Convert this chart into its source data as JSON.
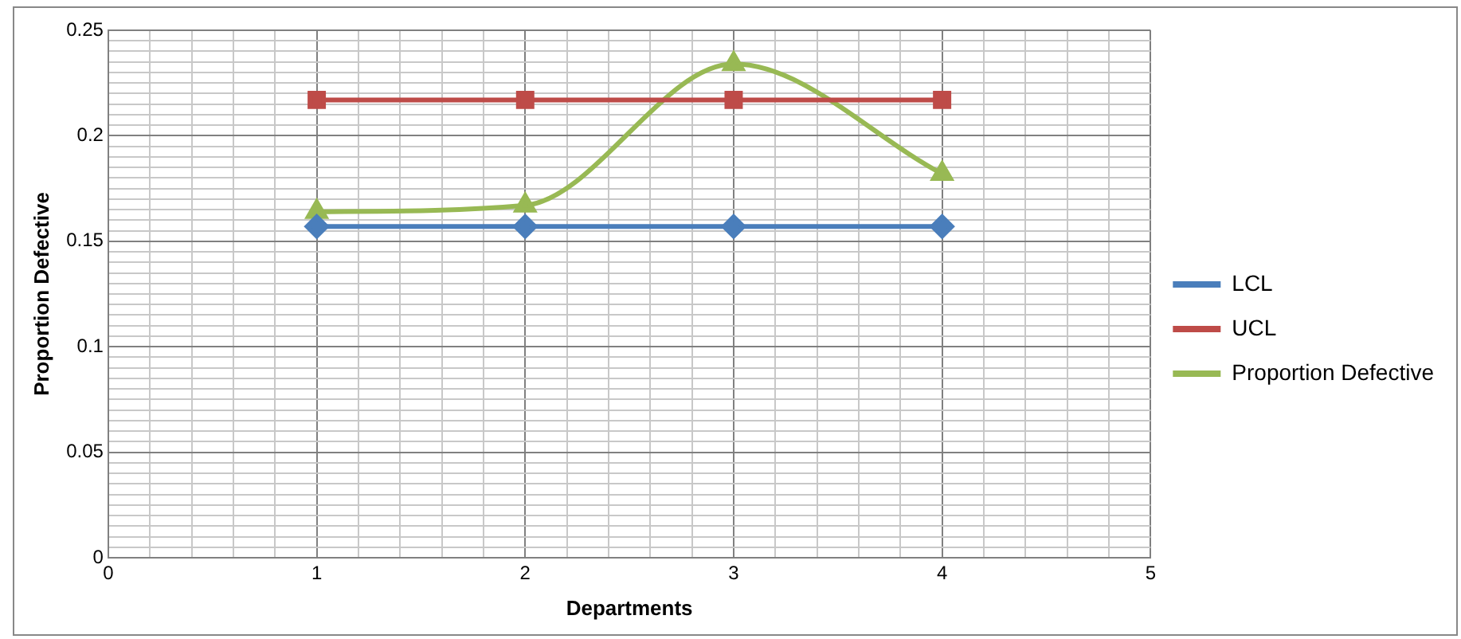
{
  "chart_data": {
    "type": "line",
    "xlabel": "Departments",
    "ylabel": "Proportion Defective",
    "xlim": [
      0,
      5
    ],
    "ylim": [
      0,
      0.25
    ],
    "xticks": [
      0,
      {
        "value": 0.2,
        "label": null
      },
      {
        "value": 0.4,
        "label": null
      },
      {
        "value": 0.6,
        "label": null
      },
      {
        "value": 0.8,
        "label": null
      },
      1,
      {
        "value": 1.2,
        "label": null
      },
      {
        "value": 1.4,
        "label": null
      },
      {
        "value": 1.6,
        "label": null
      },
      {
        "value": 1.8,
        "label": null
      },
      2,
      {
        "value": 2.2,
        "label": null
      },
      {
        "value": 2.4,
        "label": null
      },
      {
        "value": 2.6,
        "label": null
      },
      {
        "value": 2.8,
        "label": null
      },
      3,
      {
        "value": 3.2,
        "label": null
      },
      {
        "value": 3.4,
        "label": null
      },
      {
        "value": 3.6,
        "label": null
      },
      {
        "value": 3.8,
        "label": null
      },
      4,
      {
        "value": 4.2,
        "label": null
      },
      {
        "value": 4.4,
        "label": null
      },
      {
        "value": 4.6,
        "label": null
      },
      {
        "value": 4.8,
        "label": null
      },
      5
    ],
    "yticks": [
      0,
      {
        "value": 0.005,
        "label": null
      },
      {
        "value": 0.01,
        "label": null
      },
      {
        "value": 0.015,
        "label": null
      },
      {
        "value": 0.02,
        "label": null
      },
      {
        "value": 0.025,
        "label": null
      },
      {
        "value": 0.03,
        "label": null
      },
      {
        "value": 0.035,
        "label": null
      },
      {
        "value": 0.04,
        "label": null
      },
      {
        "value": 0.045,
        "label": null
      },
      0.05,
      {
        "value": 0.055,
        "label": null
      },
      {
        "value": 0.06,
        "label": null
      },
      {
        "value": 0.065,
        "label": null
      },
      {
        "value": 0.07,
        "label": null
      },
      {
        "value": 0.075,
        "label": null
      },
      {
        "value": 0.08,
        "label": null
      },
      {
        "value": 0.085,
        "label": null
      },
      {
        "value": 0.09,
        "label": null
      },
      {
        "value": 0.095,
        "label": null
      },
      0.1,
      {
        "value": 0.105,
        "label": null
      },
      {
        "value": 0.11,
        "label": null
      },
      {
        "value": 0.115,
        "label": null
      },
      {
        "value": 0.12,
        "label": null
      },
      {
        "value": 0.125,
        "label": null
      },
      {
        "value": 0.13,
        "label": null
      },
      {
        "value": 0.135,
        "label": null
      },
      {
        "value": 0.14,
        "label": null
      },
      {
        "value": 0.145,
        "label": null
      },
      0.15,
      {
        "value": 0.155,
        "label": null
      },
      {
        "value": 0.16,
        "label": null
      },
      {
        "value": 0.165,
        "label": null
      },
      {
        "value": 0.17,
        "label": null
      },
      {
        "value": 0.175,
        "label": null
      },
      {
        "value": 0.18,
        "label": null
      },
      {
        "value": 0.185,
        "label": null
      },
      {
        "value": 0.19,
        "label": null
      },
      {
        "value": 0.195,
        "label": null
      },
      0.2,
      {
        "value": 0.205,
        "label": null
      },
      {
        "value": 0.21,
        "label": null
      },
      {
        "value": 0.215,
        "label": null
      },
      {
        "value": 0.22,
        "label": null
      },
      {
        "value": 0.225,
        "label": null
      },
      {
        "value": 0.23,
        "label": null
      },
      {
        "value": 0.235,
        "label": null
      },
      {
        "value": 0.24,
        "label": null
      },
      {
        "value": 0.245,
        "label": null
      },
      0.25
    ],
    "x": [
      1,
      2,
      3,
      4
    ],
    "grid": true,
    "legend": "right",
    "series": [
      {
        "name": "LCL",
        "color": "#4a7ebb",
        "marker": "diamond",
        "values": [
          0.157,
          0.157,
          0.157,
          0.157
        ]
      },
      {
        "name": "UCL",
        "color": "#be4b48",
        "marker": "square",
        "values": [
          0.217,
          0.217,
          0.217,
          0.217
        ]
      },
      {
        "name": "Proportion Defective",
        "color": "#98b954",
        "marker": "triangle",
        "values": [
          0.164,
          0.167,
          0.234,
          0.182
        ]
      }
    ]
  }
}
